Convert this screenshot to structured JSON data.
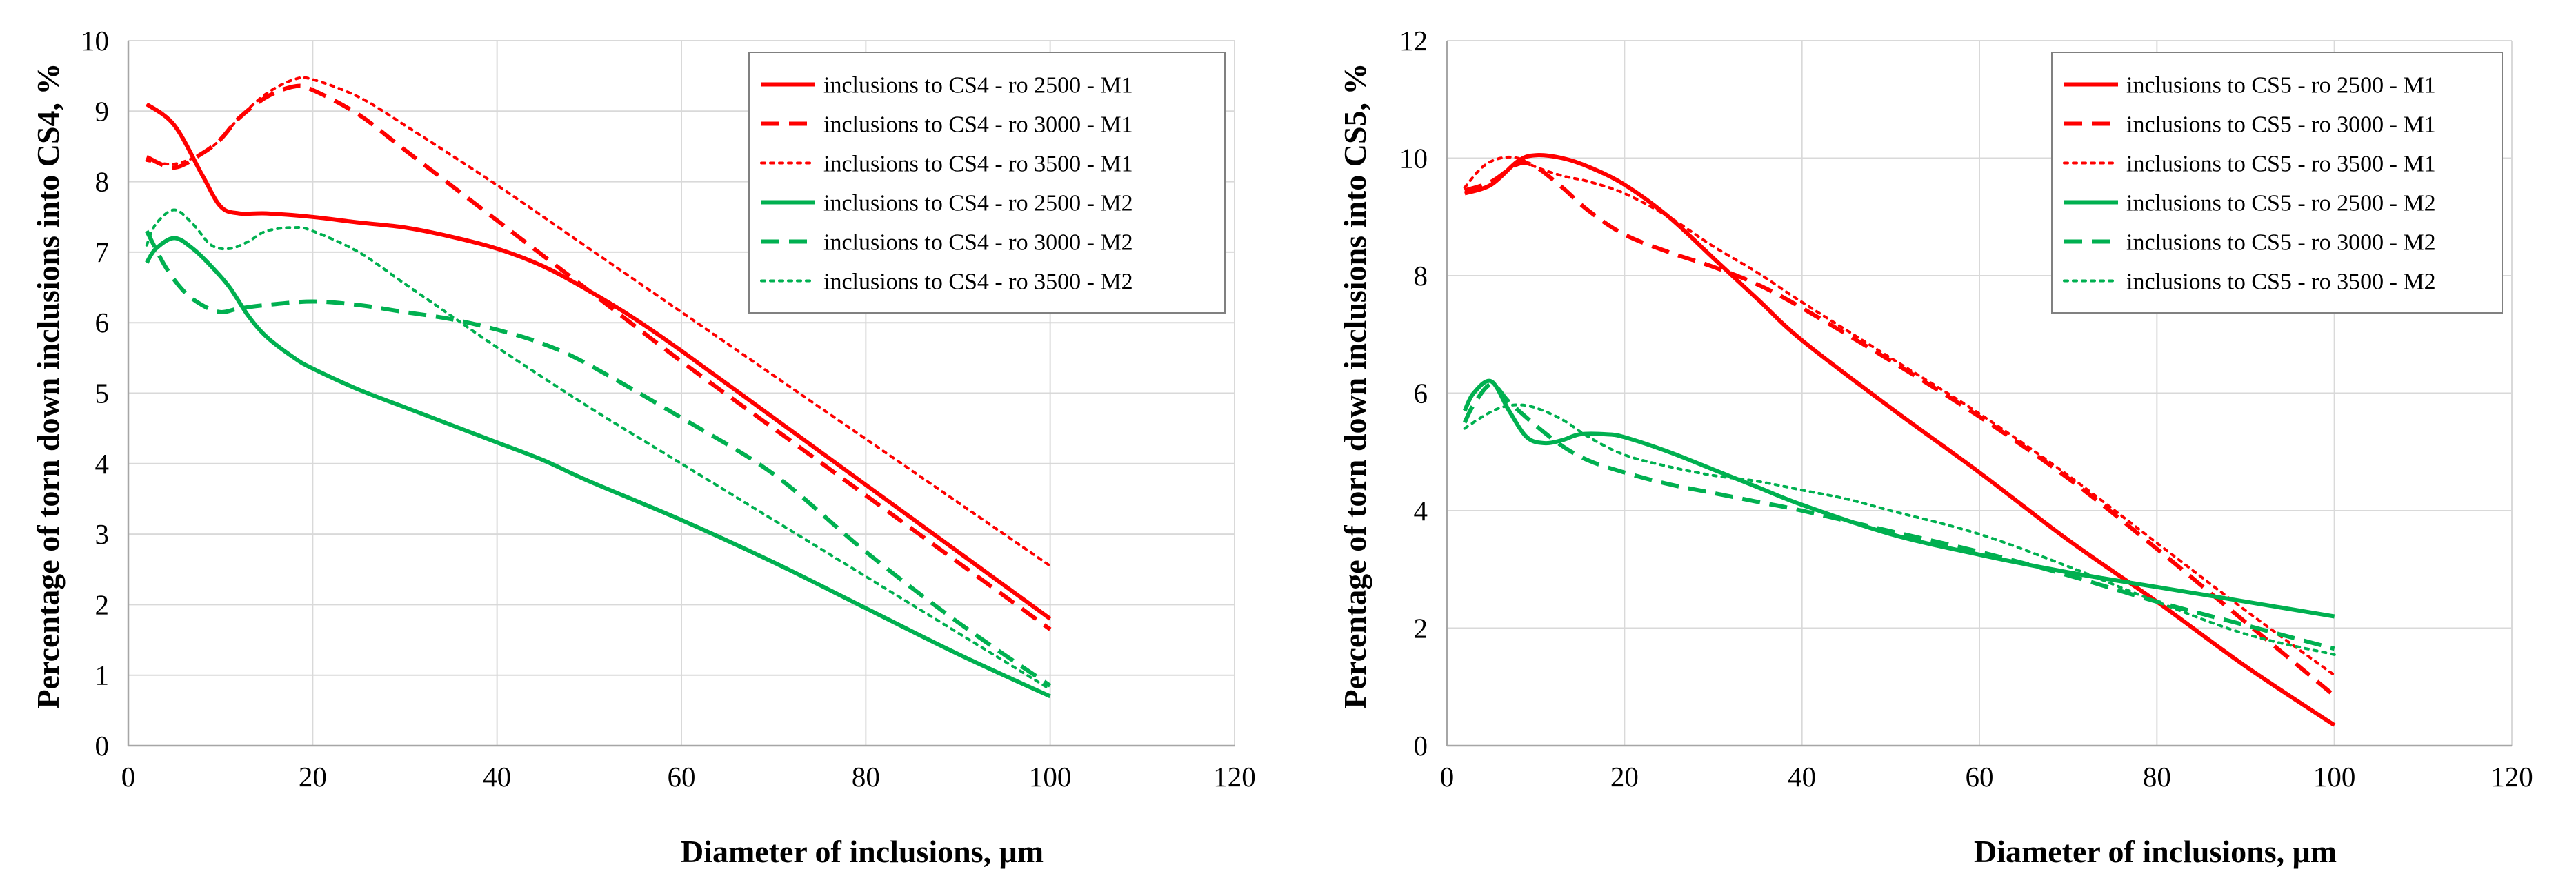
{
  "chart_data": [
    {
      "type": "line",
      "title": "",
      "xlabel": "Diameter of inclusions, μm",
      "ylabel": "Percentage of torn down inclusions into CS4, %",
      "xlim": [
        0,
        120
      ],
      "ylim": [
        0,
        10
      ],
      "xticks": [
        "0",
        "20",
        "40",
        "60",
        "80",
        "100",
        "120"
      ],
      "yticks": [
        "0",
        "1",
        "2",
        "3",
        "4",
        "5",
        "6",
        "7",
        "8",
        "9",
        "10"
      ],
      "grid": true,
      "legend_position": "top-right",
      "series": [
        {
          "name": "inclusions to CS4 - ro 2500 - M1",
          "color": "#ff0000",
          "dash": "solid",
          "x": [
            2,
            5,
            8,
            10,
            12,
            15,
            20,
            25,
            30,
            35,
            40,
            45,
            50,
            55,
            60,
            70,
            80,
            90,
            100
          ],
          "y": [
            9.1,
            8.8,
            8.1,
            7.65,
            7.55,
            7.55,
            7.5,
            7.42,
            7.35,
            7.22,
            7.05,
            6.8,
            6.45,
            6.05,
            5.6,
            4.65,
            3.7,
            2.75,
            1.8
          ]
        },
        {
          "name": "inclusions to CS4 - ro 3000 - M1",
          "color": "#ff0000",
          "dash": "dashed",
          "x": [
            2,
            5,
            8,
            10,
            12,
            15,
            18,
            20,
            25,
            30,
            40,
            50,
            60,
            70,
            80,
            90,
            100
          ],
          "y": [
            8.35,
            8.2,
            8.4,
            8.6,
            8.9,
            9.2,
            9.35,
            9.3,
            8.95,
            8.45,
            7.45,
            6.45,
            5.45,
            4.5,
            3.55,
            2.6,
            1.65
          ]
        },
        {
          "name": "inclusions to CS4 - ro 3500 - M1",
          "color": "#ff0000",
          "dash": "dotted",
          "x": [
            2,
            5,
            8,
            10,
            12,
            15,
            18,
            20,
            25,
            30,
            40,
            50,
            60,
            70,
            80,
            90,
            100
          ],
          "y": [
            8.3,
            8.25,
            8.4,
            8.6,
            8.9,
            9.25,
            9.45,
            9.45,
            9.2,
            8.8,
            7.95,
            7.05,
            6.15,
            5.25,
            4.35,
            3.45,
            2.55
          ]
        },
        {
          "name": "inclusions to CS4 - ro 2500 - M2",
          "color": "#00b050",
          "dash": "solid",
          "x": [
            2,
            3,
            5,
            7,
            9,
            11,
            13,
            15,
            18,
            20,
            25,
            30,
            35,
            40,
            45,
            50,
            60,
            70,
            80,
            90,
            100
          ],
          "y": [
            6.85,
            7.05,
            7.2,
            7.05,
            6.8,
            6.5,
            6.1,
            5.8,
            5.5,
            5.35,
            5.05,
            4.8,
            4.55,
            4.3,
            4.05,
            3.75,
            3.2,
            2.6,
            1.95,
            1.3,
            0.7
          ]
        },
        {
          "name": "inclusions to CS4 - ro 3000 - M2",
          "color": "#00b050",
          "dash": "dashed",
          "x": [
            2,
            4,
            6,
            8,
            10,
            12,
            15,
            20,
            25,
            30,
            35,
            40,
            45,
            50,
            60,
            70,
            80,
            90,
            100
          ],
          "y": [
            7.3,
            6.8,
            6.45,
            6.25,
            6.15,
            6.2,
            6.25,
            6.3,
            6.25,
            6.15,
            6.05,
            5.9,
            5.7,
            5.4,
            4.65,
            3.85,
            2.75,
            1.75,
            0.85
          ]
        },
        {
          "name": "inclusions to CS4 - ro 3500 - M2",
          "color": "#00b050",
          "dash": "dotted",
          "x": [
            2,
            3,
            5,
            7,
            9,
            11,
            13,
            15,
            18,
            20,
            25,
            30,
            35,
            40,
            50,
            60,
            70,
            80,
            90,
            100
          ],
          "y": [
            7.1,
            7.4,
            7.6,
            7.4,
            7.1,
            7.05,
            7.15,
            7.3,
            7.35,
            7.3,
            7.0,
            6.55,
            6.1,
            5.65,
            4.8,
            4.0,
            3.2,
            2.4,
            1.6,
            0.8
          ]
        }
      ]
    },
    {
      "type": "line",
      "title": "",
      "xlabel": "Diameter of inclusions, μm",
      "ylabel": "Percentage of torn down inclusions into CS5, %",
      "xlim": [
        0,
        120
      ],
      "ylim": [
        0,
        12
      ],
      "xticks": [
        "0",
        "20",
        "40",
        "60",
        "80",
        "100",
        "120"
      ],
      "yticks": [
        "0",
        "2",
        "4",
        "6",
        "8",
        "10",
        "12"
      ],
      "grid": true,
      "legend_position": "top-right",
      "series": [
        {
          "name": "inclusions to CS5 - ro 2500 - M1",
          "color": "#ff0000",
          "dash": "solid",
          "x": [
            2,
            5,
            8,
            10,
            13,
            16,
            20,
            25,
            30,
            35,
            40,
            50,
            60,
            70,
            80,
            90,
            100
          ],
          "y": [
            9.4,
            9.55,
            9.95,
            10.05,
            10.0,
            9.85,
            9.55,
            9.0,
            8.3,
            7.6,
            6.9,
            5.75,
            4.65,
            3.5,
            2.45,
            1.35,
            0.35
          ]
        },
        {
          "name": "inclusions to CS5 - ro 3000 - M1",
          "color": "#ff0000",
          "dash": "dashed",
          "x": [
            2,
            5,
            8,
            10,
            13,
            16,
            20,
            25,
            30,
            35,
            40,
            50,
            60,
            70,
            80,
            90,
            100
          ],
          "y": [
            9.45,
            9.6,
            9.9,
            9.85,
            9.5,
            9.1,
            8.7,
            8.4,
            8.15,
            7.85,
            7.45,
            6.55,
            5.6,
            4.55,
            3.35,
            2.1,
            0.85
          ]
        },
        {
          "name": "inclusions to CS5 - ro 3500 - M1",
          "color": "#ff0000",
          "dash": "dotted",
          "x": [
            2,
            4,
            6,
            8,
            10,
            13,
            16,
            20,
            25,
            30,
            35,
            40,
            50,
            60,
            70,
            80,
            90,
            100
          ],
          "y": [
            9.5,
            9.85,
            10.0,
            10.0,
            9.85,
            9.7,
            9.6,
            9.4,
            9.0,
            8.5,
            8.05,
            7.55,
            6.6,
            5.65,
            4.6,
            3.45,
            2.3,
            1.2
          ]
        },
        {
          "name": "inclusions to CS5 - ro 2500 - M2",
          "color": "#00b050",
          "dash": "solid",
          "x": [
            2,
            3,
            5,
            7,
            9,
            11,
            13,
            15,
            18,
            20,
            25,
            30,
            35,
            40,
            50,
            60,
            70,
            80,
            90,
            100
          ],
          "y": [
            5.7,
            6.0,
            6.2,
            5.7,
            5.25,
            5.15,
            5.2,
            5.3,
            5.3,
            5.25,
            5.0,
            4.7,
            4.4,
            4.1,
            3.6,
            3.25,
            2.95,
            2.7,
            2.45,
            2.2
          ]
        },
        {
          "name": "inclusions to CS5 - ro 3000 - M2",
          "color": "#00b050",
          "dash": "dashed",
          "x": [
            2,
            3,
            5,
            7,
            10,
            13,
            16,
            20,
            25,
            30,
            35,
            40,
            50,
            60,
            70,
            80,
            90,
            100
          ],
          "y": [
            5.5,
            5.8,
            6.15,
            5.85,
            5.45,
            5.1,
            4.85,
            4.65,
            4.45,
            4.3,
            4.15,
            4.0,
            3.65,
            3.3,
            2.9,
            2.45,
            2.05,
            1.65
          ]
        },
        {
          "name": "inclusions to CS5 - ro 3500 - M2",
          "color": "#00b050",
          "dash": "dotted",
          "x": [
            2,
            4,
            6,
            8,
            10,
            13,
            16,
            20,
            25,
            30,
            35,
            40,
            45,
            50,
            60,
            70,
            80,
            90,
            100
          ],
          "y": [
            5.4,
            5.6,
            5.75,
            5.8,
            5.75,
            5.55,
            5.25,
            4.95,
            4.75,
            4.6,
            4.5,
            4.35,
            4.2,
            4.0,
            3.6,
            3.05,
            2.45,
            1.9,
            1.55
          ]
        }
      ]
    }
  ]
}
